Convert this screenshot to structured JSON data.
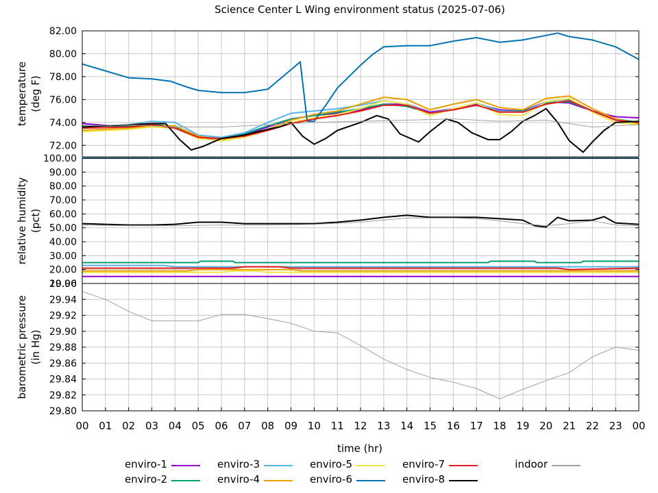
{
  "chart_data": {
    "type": "line",
    "title": "Science Center L Wing environment status (2025-07-06)",
    "xlabel": "time (hr)",
    "x_ticks": [
      "00",
      "01",
      "02",
      "03",
      "04",
      "05",
      "06",
      "07",
      "08",
      "09",
      "10",
      "11",
      "12",
      "13",
      "14",
      "15",
      "16",
      "17",
      "18",
      "19",
      "20",
      "21",
      "22",
      "23",
      "00"
    ],
    "xlim": [
      0,
      24
    ],
    "grid": true,
    "legend_placement": "bottom",
    "panels": [
      {
        "id": "temperature",
        "ylabel": [
          "temperature",
          "(deg F)"
        ],
        "ylim": [
          71.0,
          82.0
        ],
        "y_ticks": [
          "72.00",
          "74.00",
          "76.00",
          "78.00",
          "80.00",
          "82.00"
        ],
        "y_tick_values": [
          72,
          74,
          76,
          78,
          80,
          82
        ],
        "series": [
          {
            "name": "enviro-1",
            "color": "#9400d3",
            "x": [
              0,
              2,
              3,
              4,
              5,
              6,
              7,
              8,
              9,
              10,
              11,
              12,
              13,
              14,
              15,
              16,
              17,
              18,
              19,
              20,
              21,
              22,
              23,
              24
            ],
            "y": [
              73.9,
              73.6,
              73.8,
              73.5,
              72.7,
              72.5,
              72.9,
              73.6,
              74.3,
              74.6,
              74.8,
              75.1,
              75.6,
              75.6,
              74.9,
              75.2,
              75.6,
              75.1,
              75.0,
              75.8,
              75.7,
              75.0,
              74.5,
              74.4
            ]
          },
          {
            "name": "enviro-2",
            "color": "#009e73",
            "x": [
              0,
              2,
              3,
              4,
              5,
              6,
              7,
              8,
              9,
              10,
              11,
              12,
              13,
              14,
              15,
              16,
              17,
              18,
              19,
              20,
              21,
              22,
              23,
              24
            ],
            "y": [
              73.7,
              73.7,
              73.9,
              73.6,
              72.7,
              72.6,
              73.0,
              73.7,
              74.3,
              74.6,
              74.9,
              75.2,
              75.6,
              75.4,
              74.8,
              75.1,
              75.5,
              75.0,
              75.0,
              75.7,
              75.8,
              75.0,
              74.3,
              74.0
            ]
          },
          {
            "name": "enviro-3",
            "color": "#56b4e9",
            "x": [
              0,
              2,
              3,
              4,
              5,
              6,
              7,
              8,
              9,
              10,
              11,
              12,
              13,
              14,
              15,
              16,
              17,
              18,
              19,
              20,
              21,
              22,
              23,
              24
            ],
            "y": [
              73.6,
              73.8,
              74.1,
              74.0,
              72.9,
              72.7,
              73.1,
              74.0,
              74.8,
              75.0,
              75.2,
              75.5,
              75.9,
              75.6,
              74.8,
              75.2,
              75.7,
              75.0,
              74.9,
              75.8,
              76.0,
              75.0,
              74.3,
              73.9
            ]
          },
          {
            "name": "enviro-4",
            "color": "#e69f00",
            "x": [
              0,
              2,
              3,
              4,
              5,
              6,
              7,
              8,
              9,
              10,
              11,
              12,
              13,
              14,
              15,
              16,
              17,
              18,
              19,
              20,
              21,
              22,
              23,
              24
            ],
            "y": [
              73.3,
              73.5,
              73.7,
              73.7,
              72.8,
              72.5,
              72.8,
              73.4,
              74.2,
              74.7,
              75.0,
              75.6,
              76.2,
              76.0,
              75.1,
              75.6,
              76.0,
              75.3,
              75.1,
              76.1,
              76.3,
              75.2,
              74.3,
              73.9
            ]
          },
          {
            "name": "enviro-5",
            "color": "#f0e442",
            "x": [
              0,
              2,
              3,
              4,
              5,
              6,
              7,
              8,
              9,
              10,
              11,
              12,
              13,
              14,
              15,
              16,
              17,
              18,
              19,
              20,
              21,
              22,
              23,
              24
            ],
            "y": [
              73.2,
              73.4,
              73.6,
              73.5,
              72.6,
              72.4,
              72.7,
              73.3,
              74.0,
              74.4,
              74.7,
              75.2,
              75.9,
              75.6,
              74.6,
              75.2,
              75.7,
              74.7,
              74.6,
              75.8,
              76.1,
              74.9,
              74.0,
              73.8
            ]
          },
          {
            "name": "enviro-6",
            "color": "#0072b2",
            "x": [
              0,
              1,
              2,
              3,
              3.8,
              4.5,
              5,
              6,
              7,
              8,
              9,
              9.4,
              9.7,
              10,
              10.5,
              11,
              12,
              12.5,
              13,
              14,
              15,
              16,
              17,
              18,
              19,
              20,
              20.5,
              21,
              22,
              23,
              24
            ],
            "y": [
              79.1,
              78.5,
              77.9,
              77.8,
              77.6,
              77.1,
              76.8,
              76.6,
              76.6,
              76.9,
              78.6,
              79.3,
              74.1,
              74.1,
              75.5,
              77.0,
              79.0,
              79.9,
              80.6,
              80.7,
              80.7,
              81.1,
              81.4,
              81.0,
              81.2,
              81.6,
              81.8,
              81.5,
              81.2,
              80.6,
              79.5
            ]
          },
          {
            "name": "enviro-7",
            "color": "#e41a1c",
            "x": [
              0,
              2,
              3,
              4,
              5,
              6,
              7,
              8,
              9,
              10,
              11,
              12,
              13,
              14,
              15,
              16,
              17,
              18,
              19,
              20,
              21,
              22,
              23,
              24
            ],
            "y": [
              73.5,
              73.6,
              73.8,
              73.5,
              72.7,
              72.6,
              72.8,
              73.3,
              73.9,
              74.3,
              74.6,
              75.0,
              75.5,
              75.5,
              74.8,
              75.1,
              75.5,
              74.9,
              74.9,
              75.6,
              75.9,
              75.0,
              74.2,
              74.0
            ]
          },
          {
            "name": "enviro-8",
            "color": "#000000",
            "x": [
              0,
              1,
              2,
              3,
              3.6,
              4.2,
              4.7,
              5.2,
              6,
              7,
              8,
              8.5,
              9,
              9.5,
              10,
              10.5,
              11,
              12,
              12.7,
              13.2,
              13.7,
              14.5,
              15,
              15.7,
              16.2,
              16.8,
              17.5,
              18,
              18.5,
              19,
              19.5,
              20,
              20.5,
              21,
              21.6,
              22,
              22.5,
              23,
              24
            ],
            "y": [
              73.6,
              73.7,
              73.8,
              73.9,
              73.9,
              72.5,
              71.6,
              71.9,
              72.6,
              72.9,
              73.4,
              73.6,
              74.0,
              72.8,
              72.1,
              72.6,
              73.3,
              74.0,
              74.6,
              74.3,
              73.0,
              72.3,
              73.2,
              74.3,
              74.0,
              73.1,
              72.5,
              72.5,
              73.2,
              74.1,
              74.6,
              75.2,
              74.0,
              72.4,
              71.4,
              72.3,
              73.3,
              74.0,
              74.1
            ]
          },
          {
            "name": "indoor",
            "color": "#a0a0a0",
            "x": [
              0,
              2,
              4,
              6,
              8,
              10,
              12,
              14,
              16,
              18,
              20,
              22,
              23,
              24
            ],
            "y": [
              73.7,
              73.8,
              73.6,
              73.6,
              73.8,
              74.0,
              74.1,
              74.2,
              74.3,
              74.1,
              74.2,
              73.6,
              73.7,
              73.8
            ]
          }
        ]
      },
      {
        "id": "humidity",
        "ylabel": [
          "relative humidity",
          "(pct)"
        ],
        "ylim": [
          10.0,
          100.0
        ],
        "y_ticks": [
          "10.00",
          "20.00",
          "30.00",
          "40.00",
          "50.00",
          "60.00",
          "70.00",
          "80.00",
          "90.00",
          "100.00"
        ],
        "y_tick_values": [
          10,
          20,
          30,
          40,
          50,
          60,
          70,
          80,
          90,
          100
        ],
        "series": [
          {
            "name": "enviro-1",
            "color": "#9400d3",
            "x": [
              0,
              3,
              5,
              10,
              11,
              24
            ],
            "y": [
              15.0,
              15.0,
              15.0,
              15.0,
              15.0,
              15.0
            ]
          },
          {
            "name": "enviro-2",
            "color": "#009e73",
            "x": [
              0,
              5,
              5.1,
              6.5,
              6.6,
              17.5,
              17.6,
              19.5,
              19.6,
              21.5,
              21.6,
              24
            ],
            "y": [
              25.0,
              25.0,
              26.0,
              26.0,
              25.0,
              25.0,
              26.0,
              26.0,
              25.0,
              25.0,
              26.0,
              26.0
            ]
          },
          {
            "name": "enviro-3",
            "color": "#56b4e9",
            "x": [
              0,
              2.5,
              3.5,
              4,
              24
            ],
            "y": [
              23.0,
              23.0,
              23.0,
              22.0,
              22.0
            ]
          },
          {
            "name": "enviro-4",
            "color": "#e69f00",
            "x": [
              0,
              4.5,
              5,
              9,
              9.5,
              24
            ],
            "y": [
              19.0,
              19.0,
              20.0,
              20.0,
              19.0,
              19.0
            ]
          },
          {
            "name": "enviro-5",
            "color": "#f0e442",
            "x": [
              0,
              6,
              6.5,
              7.5,
              8,
              24
            ],
            "y": [
              18.0,
              18.0,
              19.0,
              19.0,
              18.0,
              18.0
            ]
          },
          {
            "name": "enviro-6",
            "color": "#0072b2",
            "x": [
              0,
              24
            ],
            "y": [
              100.0,
              100.0
            ]
          },
          {
            "name": "enviro-7",
            "color": "#e41a1c",
            "x": [
              0,
              6.5,
              7,
              8.5,
              9,
              20.5,
              21,
              24
            ],
            "y": [
              21.0,
              21.0,
              22.0,
              22.0,
              21.0,
              21.0,
              20.0,
              21.0
            ]
          },
          {
            "name": "enviro-8",
            "color": "#000000",
            "x": [
              0,
              1,
              2,
              3,
              4,
              5,
              6,
              7,
              8,
              9,
              10,
              11,
              12,
              13,
              14,
              15,
              16,
              17,
              18,
              19,
              19.5,
              20,
              20.5,
              21,
              22,
              22.5,
              23,
              24
            ],
            "y": [
              53.0,
              52.5,
              52.0,
              52.0,
              52.5,
              54.0,
              54.0,
              53.0,
              53.0,
              53.0,
              53.0,
              54.0,
              55.5,
              57.5,
              59.0,
              57.5,
              57.5,
              57.5,
              56.5,
              55.5,
              51.5,
              50.5,
              57.5,
              55.0,
              55.5,
              58.0,
              53.5,
              52.5
            ]
          },
          {
            "name": "indoor",
            "color": "#a0a0a0",
            "x": [
              0,
              2,
              4,
              6,
              8,
              10,
              12,
              14,
              16,
              17,
              18,
              19,
              20,
              21,
              22,
              23,
              24
            ],
            "y": [
              52.0,
              51.5,
              51.5,
              52.0,
              52.0,
              52.5,
              54.0,
              57.0,
              57.0,
              56.5,
              55.0,
              53.0,
              51.5,
              53.0,
              55.0,
              52.0,
              51.5
            ]
          }
        ]
      },
      {
        "id": "pressure",
        "ylabel": [
          "barometric pressure",
          "(in Hg)"
        ],
        "ylim": [
          29.8,
          29.96
        ],
        "y_ticks": [
          "29.80",
          "29.82",
          "29.84",
          "29.86",
          "29.88",
          "29.90",
          "29.92",
          "29.94",
          "29.96"
        ],
        "y_tick_values": [
          29.8,
          29.82,
          29.84,
          29.86,
          29.88,
          29.9,
          29.92,
          29.94,
          29.96
        ],
        "series": [
          {
            "name": "indoor",
            "color": "#a0a0a0",
            "x": [
              0,
              1,
              2,
              3,
              4,
              5,
              6,
              7,
              8,
              9,
              10,
              11,
              12,
              13,
              14,
              15,
              16,
              17,
              18,
              19,
              20,
              21,
              22,
              23,
              24
            ],
            "y": [
              29.95,
              29.94,
              29.925,
              29.913,
              29.913,
              29.913,
              29.921,
              29.921,
              29.916,
              29.91,
              29.9,
              29.898,
              29.882,
              29.865,
              29.852,
              29.842,
              29.836,
              29.828,
              29.815,
              29.827,
              29.838,
              29.848,
              29.868,
              29.88,
              29.876
            ]
          }
        ]
      }
    ]
  },
  "legend": [
    {
      "name": "enviro-1",
      "color": "#9400d3"
    },
    {
      "name": "enviro-3",
      "color": "#56b4e9"
    },
    {
      "name": "enviro-5",
      "color": "#f0e442"
    },
    {
      "name": "enviro-7",
      "color": "#e41a1c"
    },
    {
      "name": "indoor",
      "color": "#a0a0a0"
    },
    {
      "name": "enviro-2",
      "color": "#009e73"
    },
    {
      "name": "enviro-4",
      "color": "#e69f00"
    },
    {
      "name": "enviro-6",
      "color": "#0072b2"
    },
    {
      "name": "enviro-8",
      "color": "#000000"
    }
  ]
}
